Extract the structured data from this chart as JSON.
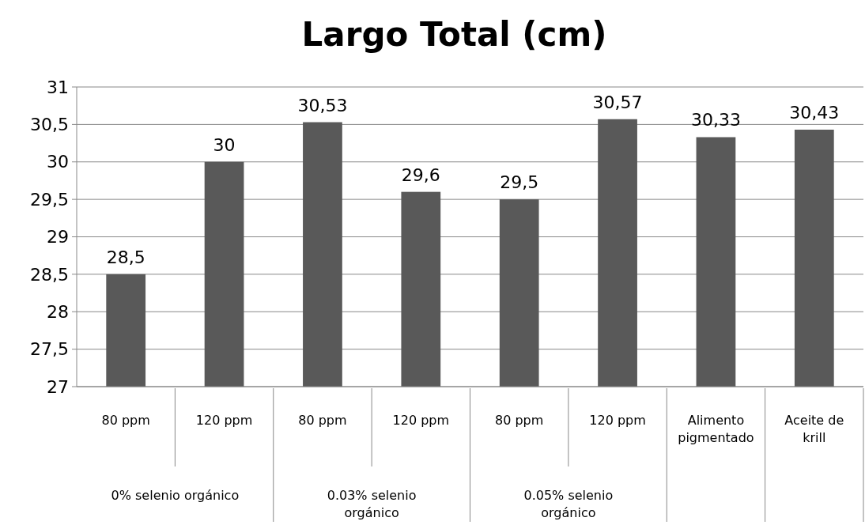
{
  "chart_data": {
    "type": "bar",
    "title": "Largo Total (cm)",
    "categories": [
      "80 ppm",
      "120 ppm",
      "80 ppm",
      "120 ppm",
      "80 ppm",
      "120 ppm",
      "Alimento pigmentado",
      "Aceite de krill"
    ],
    "values": [
      28.5,
      30,
      30.53,
      29.6,
      29.5,
      30.57,
      30.33,
      30.43
    ],
    "value_labels": [
      "28,5",
      "30",
      "30,53",
      "29,6",
      "29,5",
      "30,57",
      "30,33",
      "30,43"
    ],
    "color": "#595959",
    "ylim": [
      27,
      31
    ],
    "yticks": [
      27,
      {
        "value": 27.5,
        "label": "27,5"
      },
      28,
      {
        "value": 28.5,
        "label": "28,5"
      },
      29,
      {
        "value": 29.5,
        "label": "29,5"
      },
      30,
      {
        "value": 30.5,
        "label": "30,5"
      },
      31
    ],
    "grid": "y",
    "annotations": [
      "0% selenio orgánico",
      "0.03% selenio orgánico",
      "0.05% selenio orgánico"
    ]
  }
}
